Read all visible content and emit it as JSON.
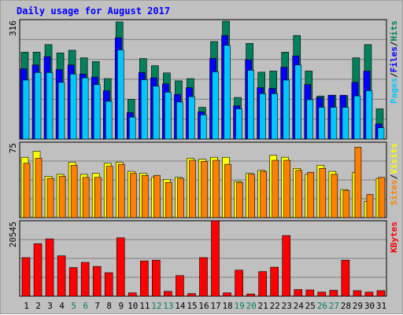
{
  "title": "Daily usage for August 2017",
  "panels": {
    "top": {
      "max_label": "316"
    },
    "middle": {
      "max_label": "75"
    },
    "bottom": {
      "max_label": "20545"
    }
  },
  "legends": {
    "top": [
      {
        "text": "Pages",
        "color": "#00c8ff"
      },
      {
        "text": "/",
        "color": "#000000"
      },
      {
        "text": "Files",
        "color": "#0000ff"
      },
      {
        "text": "/",
        "color": "#000000"
      },
      {
        "text": "Hits",
        "color": "#00805c"
      }
    ],
    "middle": [
      {
        "text": "Sites",
        "color": "#ff8000"
      },
      {
        "text": "/",
        "color": "#000000"
      },
      {
        "text": "Visits",
        "color": "#ffff00"
      }
    ],
    "bottom": [
      {
        "text": "KBytes",
        "color": "#ff0000"
      }
    ]
  },
  "colors": {
    "hits": "#00805c",
    "files": "#0000ff",
    "pages": "#00c8ff",
    "visits": "#ffff00",
    "sites": "#ff8000",
    "kbytes": "#ff0000",
    "weekend_label": "#00805c",
    "weekday_label": "#000000"
  },
  "chart_data": {
    "type": "bar",
    "title": "Daily usage for August 2017",
    "categories": [
      "1",
      "2",
      "3",
      "4",
      "5",
      "6",
      "7",
      "8",
      "9",
      "10",
      "11",
      "12",
      "13",
      "14",
      "15",
      "16",
      "17",
      "18",
      "19",
      "20",
      "21",
      "22",
      "23",
      "24",
      "25",
      "26",
      "27",
      "28",
      "29",
      "30",
      "31"
    ],
    "weekend_days": [
      "5",
      "6",
      "12",
      "13",
      "19",
      "20",
      "26",
      "27"
    ],
    "series": [
      {
        "name": "Hits",
        "panel": "top",
        "values": [
          230,
          230,
          250,
          228,
          235,
          215,
          205,
          160,
          310,
          105,
          213,
          194,
          175,
          154,
          160,
          84,
          258,
          312,
          110,
          253,
          177,
          180,
          230,
          274,
          180,
          114,
          116,
          115,
          215,
          250,
          80
        ]
      },
      {
        "name": "Files",
        "panel": "top",
        "values": [
          186,
          196,
          218,
          184,
          196,
          172,
          164,
          128,
          268,
          70,
          176,
          162,
          146,
          118,
          136,
          72,
          214,
          274,
          88,
          210,
          136,
          134,
          190,
          220,
          144,
          110,
          116,
          116,
          150,
          180,
          40
        ]
      },
      {
        "name": "Pages",
        "panel": "top",
        "values": [
          156,
          176,
          176,
          150,
          172,
          162,
          144,
          100,
          236,
          58,
          157,
          140,
          124,
          98,
          112,
          64,
          178,
          248,
          80,
          182,
          120,
          120,
          156,
          196,
          104,
          84,
          84,
          84,
          114,
          128,
          30
        ]
      },
      {
        "name": "Visits",
        "panel": "middle",
        "values": [
          60,
          66,
          41,
          43,
          55,
          43,
          44,
          54,
          55,
          46,
          44,
          40,
          38,
          40,
          59,
          58,
          60,
          60,
          36,
          44,
          47,
          62,
          60,
          49,
          43,
          52,
          46,
          28,
          45,
          16,
          39
        ]
      },
      {
        "name": "Sites",
        "panel": "middle",
        "values": [
          54,
          59,
          39,
          41,
          52,
          40,
          40,
          51,
          53,
          44,
          42,
          42,
          35,
          39,
          57,
          56,
          57,
          53,
          35,
          43,
          46,
          57,
          57,
          47,
          45,
          49,
          43,
          27,
          70,
          23,
          40
        ]
      },
      {
        "name": "KBytes",
        "panel": "bottom",
        "values": [
          10500,
          14300,
          15600,
          11000,
          7800,
          9200,
          8100,
          6400,
          15900,
          900,
          9600,
          9800,
          1300,
          5600,
          700,
          10500,
          20545,
          900,
          7100,
          600,
          6700,
          7900,
          16500,
          1800,
          1700,
          1100,
          1600,
          9800,
          1500,
          1100,
          1500
        ]
      }
    ],
    "ymax": {
      "top": 316,
      "middle": 75,
      "bottom": 20545
    },
    "grid": true
  }
}
